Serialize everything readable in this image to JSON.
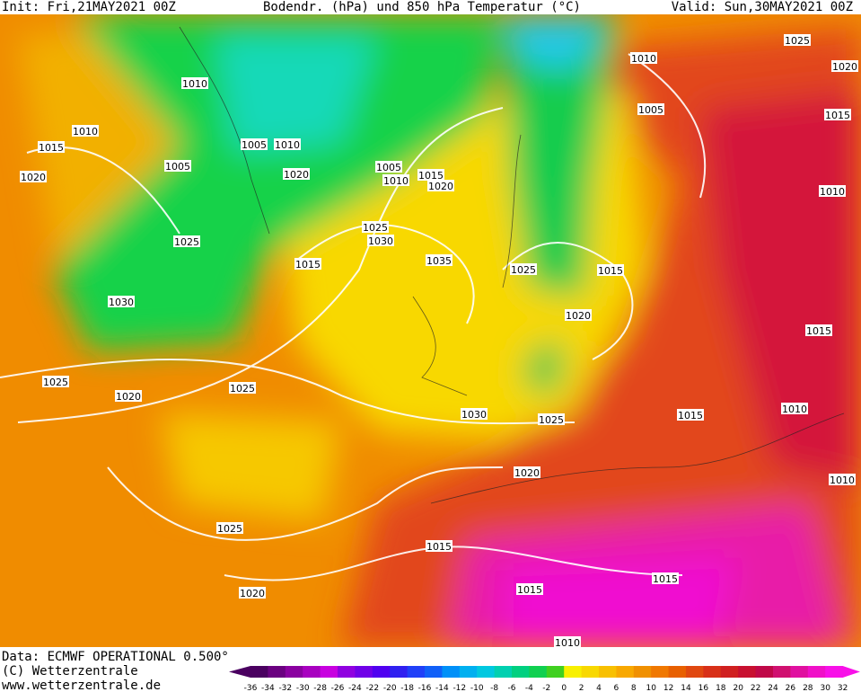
{
  "header": {
    "init": "Init: Fri,21MAY2021 00Z",
    "title": "Bodendr. (hPa) und 850 hPa Temperatur (°C)",
    "valid": "Valid: Sun,30MAY2021 00Z"
  },
  "isobar_labels": [
    "1010",
    "1010",
    "1015",
    "1005",
    "1020",
    "1005",
    "1010",
    "1020",
    "1005",
    "1010",
    "1015",
    "1020",
    "1025",
    "1025",
    "1030",
    "1015",
    "1035",
    "1030",
    "1025",
    "1015",
    "1020",
    "1025",
    "1020",
    "1025",
    "1030",
    "1025",
    "1015",
    "1010",
    "1020",
    "1025",
    "1020",
    "1015",
    "1015",
    "1015",
    "1010",
    "1010",
    "1005",
    "1025",
    "1020",
    "1015",
    "1010",
    "1015",
    "1010"
  ],
  "footer": {
    "data": "Data: ECMWF OPERATIONAL 0.500°",
    "copyright": "(C) Wetterzentrale",
    "url": "www.wetterzentrale.de"
  },
  "scale": {
    "labels": [
      -36,
      -34,
      -32,
      -30,
      -28,
      -26,
      -24,
      -22,
      -20,
      -18,
      -16,
      -14,
      -12,
      -10,
      -8,
      -6,
      -4,
      -2,
      0,
      2,
      4,
      6,
      8,
      10,
      12,
      14,
      16,
      18,
      20,
      22,
      24,
      26,
      28,
      30,
      32
    ]
  }
}
